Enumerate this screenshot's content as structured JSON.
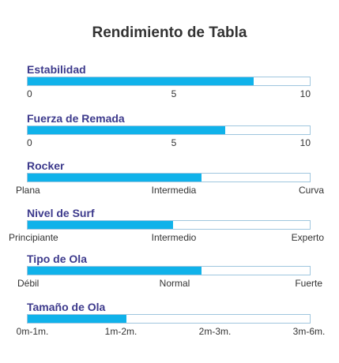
{
  "title": "Rendimiento de Tabla",
  "colors": {
    "fill": "#10b2ea",
    "track_border": "#9fc6de",
    "label": "#3d3a8c",
    "text": "#333333"
  },
  "metrics": [
    {
      "label": "Estabilidad",
      "level": 0.8,
      "ticks": [
        "0",
        "5",
        "10"
      ]
    },
    {
      "label": "Fuerza de Remada",
      "level": 0.7,
      "ticks": [
        "0",
        "5",
        "10"
      ]
    },
    {
      "label": "Rocker",
      "level": 0.616,
      "ticks": [
        "Plana",
        "Intermedia",
        "Curva"
      ]
    },
    {
      "label": "Nivel de Surf",
      "level": 0.515,
      "ticks": [
        "Principiante",
        "Intermedio",
        "Experto"
      ]
    },
    {
      "label": "Tipo de Ola",
      "level": 0.616,
      "ticks": [
        "Débil",
        "Normal",
        "Fuerte"
      ]
    },
    {
      "label": "Tamaño de Ola",
      "level": 0.35,
      "ticks": [
        "0m-1m.",
        "1m-2m.",
        "2m-3m.",
        "3m-6m."
      ]
    }
  ]
}
